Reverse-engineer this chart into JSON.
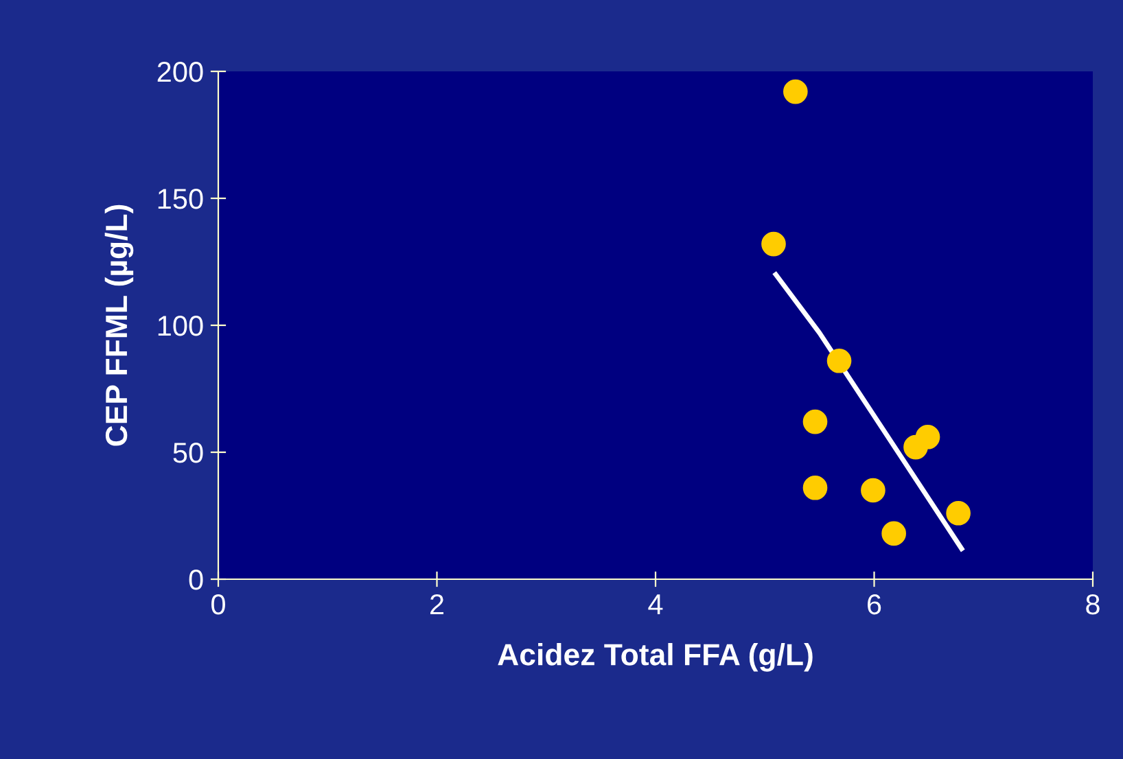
{
  "chart_data": {
    "type": "scatter",
    "xlabel": "Acidez Total FFA (g/L)",
    "ylabel": "CEP FFML (µg/L)",
    "xlim": [
      0,
      8
    ],
    "xticks": [
      0,
      2,
      4,
      6,
      8
    ],
    "ylim": [
      0,
      200
    ],
    "yticks": [
      0,
      50,
      100,
      150,
      200
    ],
    "grid": false,
    "legend": false,
    "series": [
      {
        "color": "#ffcc00",
        "marker": "circle",
        "x": [
          5.28,
          5.08,
          5.68,
          5.46,
          5.46,
          5.99,
          6.18,
          6.38,
          6.49,
          6.77
        ],
        "values": [
          192,
          132,
          86,
          62,
          36,
          35,
          18,
          52,
          56,
          26
        ]
      },
      {
        "type": "line",
        "color": "#ffffff",
        "marker": "none",
        "x": [
          5.1,
          5.5,
          6.8
        ],
        "values": [
          120,
          97,
          12
        ]
      }
    ]
  }
}
